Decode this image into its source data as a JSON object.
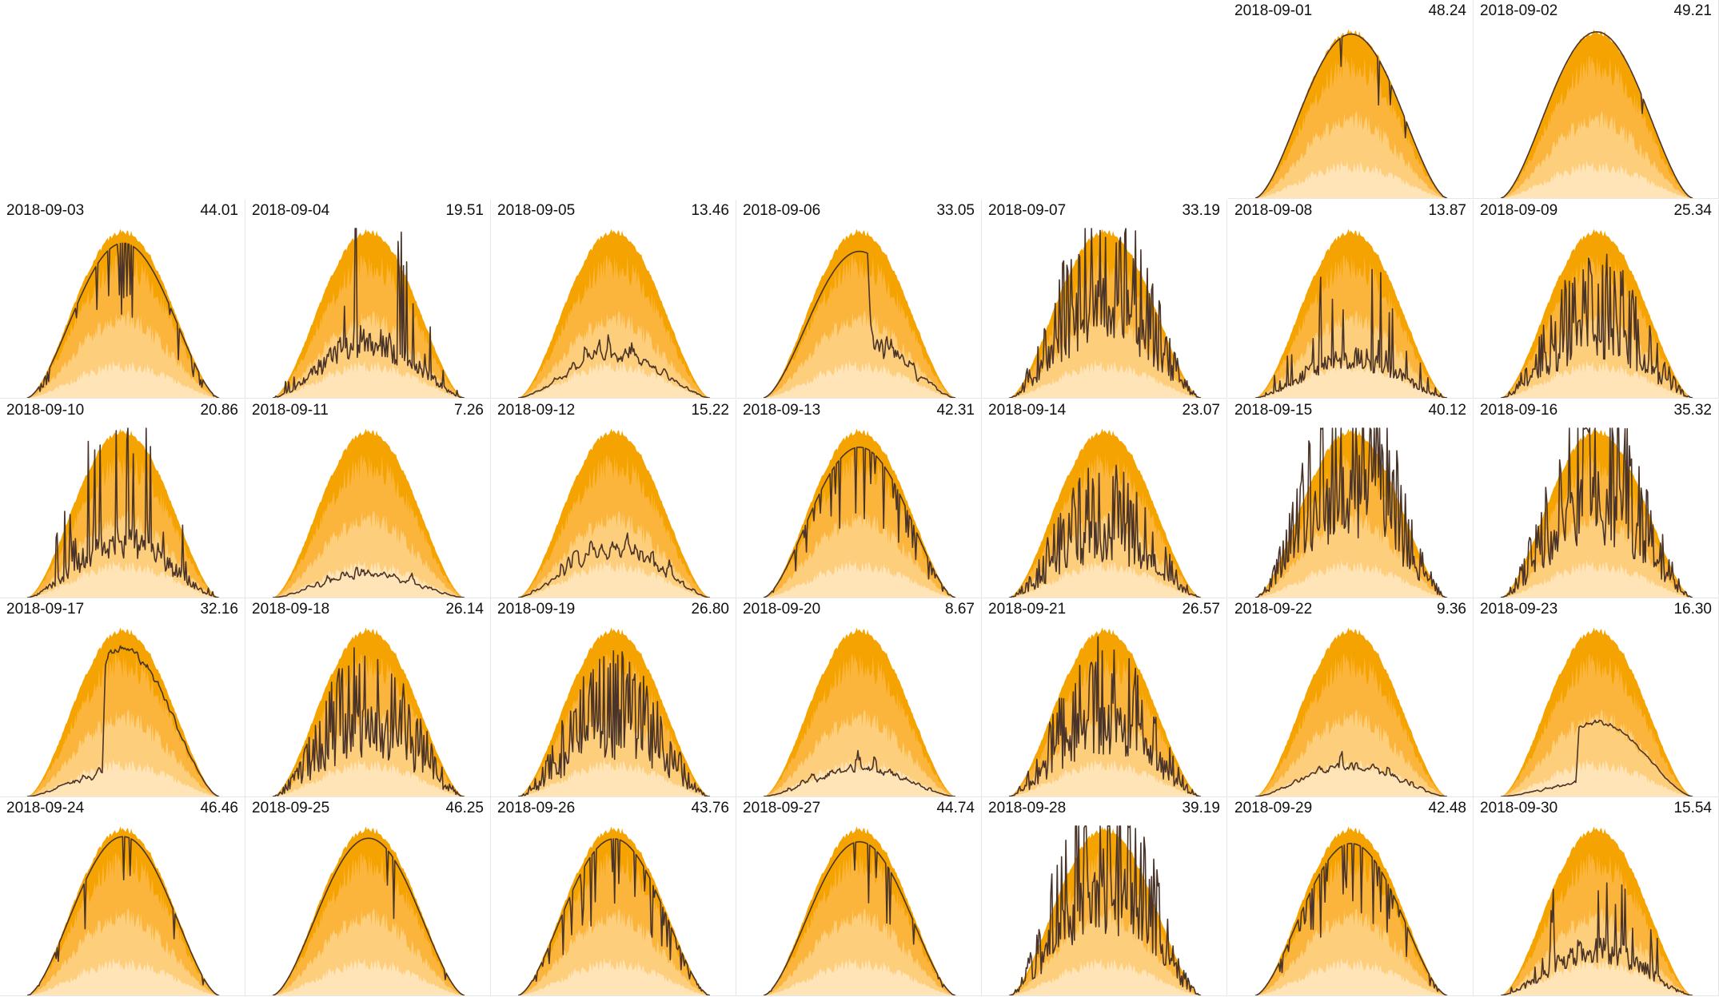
{
  "colors": {
    "band_max": "#f5a300",
    "band_p75": "#fbb53c",
    "band_p50": "#fdce7c",
    "band_p25": "#ffe4b8",
    "actual_line": "#4a3328",
    "baseline": "#c0392b"
  },
  "chart_data": {
    "type": "area",
    "layout": "calendar-small-multiples",
    "month": "2018-09",
    "week_start": "Monday",
    "per_panel_series": [
      "max",
      "p75",
      "p50",
      "p25",
      "actual"
    ],
    "days": [
      {
        "date": "2018-09-01",
        "value": "48.24",
        "pattern": "clear"
      },
      {
        "date": "2018-09-02",
        "value": "49.21",
        "pattern": "clear"
      },
      {
        "date": "2018-09-03",
        "value": "44.01",
        "pattern": "mostly_clear"
      },
      {
        "date": "2018-09-04",
        "value": "19.51",
        "pattern": "cloudy_spiky"
      },
      {
        "date": "2018-09-05",
        "value": "13.46",
        "pattern": "overcast"
      },
      {
        "date": "2018-09-06",
        "value": "33.05",
        "pattern": "clear_morning"
      },
      {
        "date": "2018-09-07",
        "value": "33.19",
        "pattern": "broken"
      },
      {
        "date": "2018-09-08",
        "value": "13.87",
        "pattern": "cloudy_spiky"
      },
      {
        "date": "2018-09-09",
        "value": "25.34",
        "pattern": "broken"
      },
      {
        "date": "2018-09-10",
        "value": "20.86",
        "pattern": "cloudy_spiky"
      },
      {
        "date": "2018-09-11",
        "value": "7.26",
        "pattern": "overcast"
      },
      {
        "date": "2018-09-12",
        "value": "15.22",
        "pattern": "overcast"
      },
      {
        "date": "2018-09-13",
        "value": "42.31",
        "pattern": "mostly_clear"
      },
      {
        "date": "2018-09-14",
        "value": "23.07",
        "pattern": "broken"
      },
      {
        "date": "2018-09-15",
        "value": "40.12",
        "pattern": "broken"
      },
      {
        "date": "2018-09-16",
        "value": "35.32",
        "pattern": "broken"
      },
      {
        "date": "2018-09-17",
        "value": "32.16",
        "pattern": "clear_afternoon"
      },
      {
        "date": "2018-09-18",
        "value": "26.14",
        "pattern": "broken"
      },
      {
        "date": "2018-09-19",
        "value": "26.80",
        "pattern": "broken"
      },
      {
        "date": "2018-09-20",
        "value": "8.67",
        "pattern": "overcast"
      },
      {
        "date": "2018-09-21",
        "value": "26.57",
        "pattern": "broken"
      },
      {
        "date": "2018-09-22",
        "value": "9.36",
        "pattern": "overcast"
      },
      {
        "date": "2018-09-23",
        "value": "16.30",
        "pattern": "clear_afternoon"
      },
      {
        "date": "2018-09-24",
        "value": "46.46",
        "pattern": "clear"
      },
      {
        "date": "2018-09-25",
        "value": "46.25",
        "pattern": "clear"
      },
      {
        "date": "2018-09-26",
        "value": "43.76",
        "pattern": "mostly_clear"
      },
      {
        "date": "2018-09-27",
        "value": "44.74",
        "pattern": "clear"
      },
      {
        "date": "2018-09-28",
        "value": "39.19",
        "pattern": "broken"
      },
      {
        "date": "2018-09-29",
        "value": "42.48",
        "pattern": "mostly_clear"
      },
      {
        "date": "2018-09-30",
        "value": "15.54",
        "pattern": "cloudy_spiky"
      }
    ]
  }
}
